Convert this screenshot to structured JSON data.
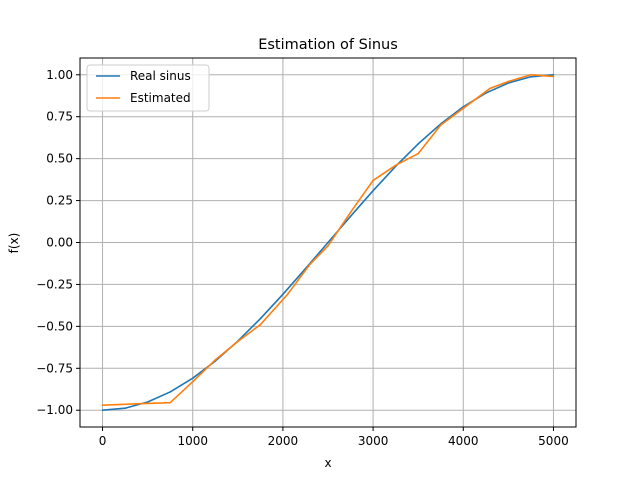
{
  "chart_data": {
    "type": "line",
    "title": "Estimation of Sinus",
    "xlabel": "x",
    "ylabel": "f(x)",
    "xlim": [
      -250,
      5250
    ],
    "ylim": [
      -1.1,
      1.1
    ],
    "grid": true,
    "legend": {
      "placement": "top-left"
    },
    "xticks": [
      0,
      1000,
      2000,
      3000,
      4000,
      5000
    ],
    "xtick_labels": [
      "0",
      "1000",
      "2000",
      "3000",
      "4000",
      "5000"
    ],
    "yticks": [
      -1.0,
      -0.75,
      -0.5,
      -0.25,
      0.0,
      0.25,
      0.5,
      0.75,
      1.0
    ],
    "ytick_labels": [
      "−1.00",
      "−0.75",
      "−0.50",
      "−0.25",
      "0.00",
      "0.25",
      "0.50",
      "0.75",
      "1.00"
    ],
    "series": [
      {
        "name": "Real sinus",
        "color": "#1f77b4",
        "x": [
          0,
          250,
          500,
          750,
          1000,
          1250,
          1500,
          1750,
          2000,
          2250,
          2500,
          2750,
          3000,
          3250,
          3500,
          3750,
          4000,
          4250,
          4500,
          4750,
          5000
        ],
        "y": [
          -1.0,
          -0.988,
          -0.951,
          -0.891,
          -0.809,
          -0.707,
          -0.588,
          -0.454,
          -0.309,
          -0.156,
          0.0,
          0.156,
          0.309,
          0.454,
          0.588,
          0.707,
          0.809,
          0.891,
          0.951,
          0.988,
          1.0
        ]
      },
      {
        "name": "Estimated",
        "color": "#ff7f0e",
        "x": [
          0,
          450,
          750,
          1000,
          1250,
          1500,
          1750,
          2050,
          2300,
          2500,
          2750,
          3000,
          3250,
          3500,
          3750,
          4000,
          4300,
          4500,
          4750,
          5000
        ],
        "y": [
          -0.97,
          -0.96,
          -0.955,
          -0.83,
          -0.7,
          -0.59,
          -0.49,
          -0.31,
          -0.13,
          -0.02,
          0.18,
          0.37,
          0.46,
          0.53,
          0.7,
          0.8,
          0.92,
          0.96,
          1.0,
          0.99
        ]
      }
    ]
  }
}
